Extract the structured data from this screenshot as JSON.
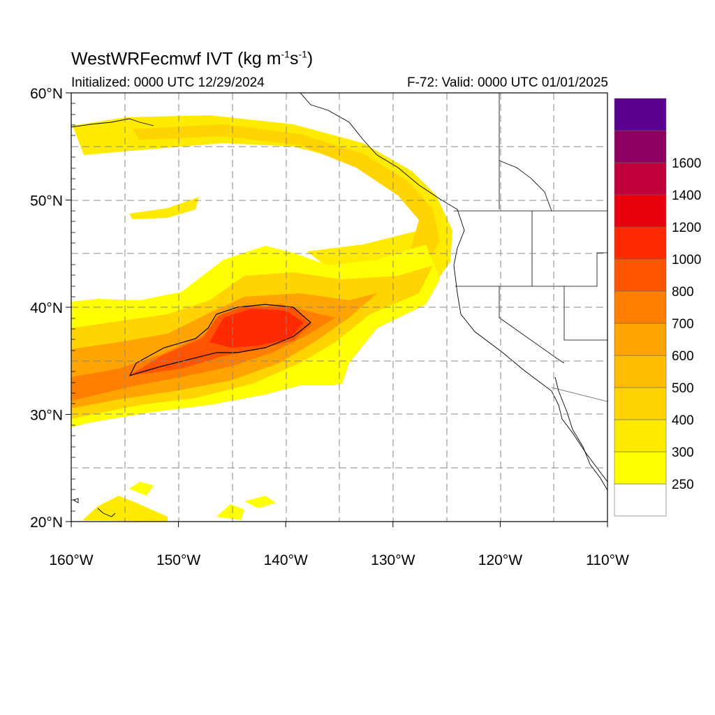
{
  "title": {
    "model": "WestWRFecmwf",
    "variable": "IVT",
    "units_prefix": "(kg m",
    "units_exp1": "-1",
    "units_mid": "s",
    "units_exp2": "-1",
    "units_suffix": ")"
  },
  "subtitle": {
    "initialized": "Initialized: 0000 UTC 12/29/2024",
    "valid": "F-72: Valid: 0000 UTC 01/01/2025"
  },
  "map": {
    "lon_range": [
      -160,
      -110
    ],
    "lat_range": [
      20,
      60
    ],
    "lon_ticks": [
      {
        "value": -160,
        "label": "160°W"
      },
      {
        "value": -150,
        "label": "150°W"
      },
      {
        "value": -140,
        "label": "140°W"
      },
      {
        "value": -130,
        "label": "130°W"
      },
      {
        "value": -120,
        "label": "120°W"
      },
      {
        "value": -110,
        "label": "110°W"
      }
    ],
    "lat_ticks": [
      {
        "value": 20,
        "label": "20°N"
      },
      {
        "value": 30,
        "label": "30°N"
      },
      {
        "value": 40,
        "label": "40°N"
      },
      {
        "value": 50,
        "label": "50°N"
      },
      {
        "value": 60,
        "label": "60°N"
      }
    ],
    "grid": "dashed every 5°"
  },
  "colorbar": {
    "levels": [
      {
        "label": "",
        "color": "#ffffff"
      },
      {
        "label": "250",
        "color": "#ffff00"
      },
      {
        "label": "300",
        "color": "#ffeb00"
      },
      {
        "label": "400",
        "color": "#ffd400"
      },
      {
        "label": "500",
        "color": "#ffbc00"
      },
      {
        "label": "600",
        "color": "#ffa400"
      },
      {
        "label": "700",
        "color": "#ff7f00"
      },
      {
        "label": "800",
        "color": "#ff5500"
      },
      {
        "label": "1000",
        "color": "#ff2a00"
      },
      {
        "label": "1200",
        "color": "#e8000c"
      },
      {
        "label": "1400",
        "color": "#c0003a"
      },
      {
        "label": "1600",
        "color": "#8b0060"
      },
      {
        "label": "",
        "color": "#5a0090"
      }
    ]
  }
}
